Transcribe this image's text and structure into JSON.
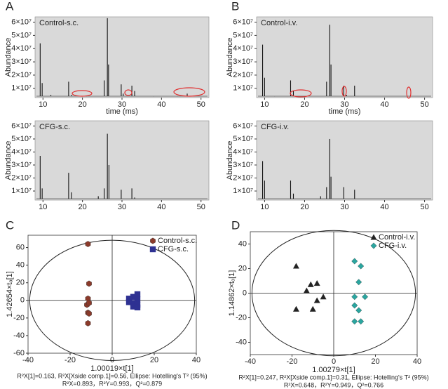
{
  "chart_data": [
    {
      "type": "chromatogram",
      "panel": "A",
      "name": "Control-s.c.",
      "color": "#111111",
      "background": "#d9d9d9",
      "y_label": "Abundance",
      "x_label": "time (ms)",
      "x": [
        9.3,
        9.8,
        12.0,
        16.5,
        17.3,
        21.0,
        25.5,
        26.3,
        26.6,
        29.8,
        30.3,
        32.5,
        33.2,
        38.0,
        44.0,
        46.5
      ],
      "values": [
        44000000,
        14000000,
        5000000,
        15000000,
        5000000,
        4000000,
        16000000,
        63000000,
        28000000,
        13000000,
        6000000,
        12000000,
        8000000,
        4000000,
        4000000,
        6000000
      ],
      "xlim": [
        8,
        52
      ],
      "xticks": [
        10,
        20,
        30,
        40,
        50
      ],
      "ylim": [
        3000000,
        64000000
      ],
      "yticks": [
        {
          "value": 10000000,
          "label": "1×10⁷"
        },
        {
          "value": 20000000,
          "label": "2×10⁷"
        },
        {
          "value": 30000000,
          "label": "3×10⁷"
        },
        {
          "value": 40000000,
          "label": "4×10⁷"
        },
        {
          "value": 50000000,
          "label": "5×10⁷"
        },
        {
          "value": 60000000,
          "label": "6×10⁷"
        }
      ]
    },
    {
      "type": "chromatogram",
      "name": "CFG-s.c.",
      "color": "#111111",
      "background": "#d9d9d9",
      "y_label": "Abundance",
      "x": [
        9.3,
        9.8,
        16.5,
        17.2,
        24.0,
        25.5,
        26.3,
        26.7,
        29.8,
        32.5,
        33.2
      ],
      "values": [
        37000000,
        12000000,
        24000000,
        9000000,
        6000000,
        12000000,
        54000000,
        30000000,
        11000000,
        12000000,
        5000000
      ],
      "xlim": [
        8,
        52
      ],
      "xticks": [
        10,
        20,
        30,
        40,
        50
      ],
      "ylim": [
        3000000,
        64000000
      ],
      "yticks": [
        {
          "value": 10000000,
          "label": "1×10⁷"
        },
        {
          "value": 20000000,
          "label": "2×10⁷"
        },
        {
          "value": 30000000,
          "label": "3×10⁷"
        },
        {
          "value": 40000000,
          "label": "4×10⁷"
        },
        {
          "value": 50000000,
          "label": "5×10⁷"
        },
        {
          "value": 60000000,
          "label": "6×10⁷"
        }
      ]
    },
    {
      "type": "chromatogram",
      "panel": "B",
      "name": "Control-i.v.",
      "color": "#111111",
      "background": "#d9d9d9",
      "y_label": "Abundance",
      "x_label": "time (ms)",
      "x": [
        9.5,
        10.0,
        12.5,
        16.5,
        17.2,
        25.5,
        26.3,
        26.6,
        29.8,
        30.5,
        32.5
      ],
      "values": [
        43000000,
        18000000,
        4000000,
        16000000,
        8000000,
        15000000,
        58000000,
        28000000,
        12000000,
        5000000,
        12000000
      ],
      "xlim": [
        8,
        52
      ],
      "xticks": [
        10,
        20,
        30,
        40,
        50
      ],
      "ylim": [
        3000000,
        64000000
      ],
      "yticks": [
        {
          "value": 10000000,
          "label": "1×10⁷"
        },
        {
          "value": 20000000,
          "label": "2×10⁷"
        },
        {
          "value": 30000000,
          "label": "3×10⁷"
        },
        {
          "value": 40000000,
          "label": "4×10⁷"
        },
        {
          "value": 50000000,
          "label": "5×10⁷"
        },
        {
          "value": 60000000,
          "label": "6×10⁷"
        }
      ]
    },
    {
      "type": "chromatogram",
      "name": "CFG-i.v.",
      "color": "#111111",
      "background": "#d9d9d9",
      "y_label": "Abundance",
      "x": [
        9.5,
        10.0,
        16.5,
        17.2,
        24.0,
        25.5,
        26.3,
        26.6,
        29.8,
        32.5
      ],
      "values": [
        33000000,
        18000000,
        18000000,
        8000000,
        6000000,
        13000000,
        50000000,
        21000000,
        13000000,
        11000000
      ],
      "xlim": [
        8,
        52
      ],
      "xticks": [
        10,
        20,
        30,
        40,
        50
      ],
      "ylim": [
        3000000,
        64000000
      ],
      "yticks": [
        {
          "value": 10000000,
          "label": "1×10⁷"
        },
        {
          "value": 20000000,
          "label": "2×10⁷"
        },
        {
          "value": 30000000,
          "label": "3×10⁷"
        },
        {
          "value": 40000000,
          "label": "4×10⁷"
        },
        {
          "value": 50000000,
          "label": "5×10⁷"
        },
        {
          "value": 60000000,
          "label": "6×10⁷"
        }
      ]
    },
    {
      "type": "scatter",
      "panel": "C",
      "x_label": "1.00019×t[1]",
      "y_label": "1.42654×tₒ[1]",
      "legend": "upper right",
      "notes": [
        "R²X[1]=0.163, R²X[Xside comp.1]=0.56, Ellipse: Hotelling's T² (95%)",
        "R²X=0.893，R²Y=0.993，Q²=0.879"
      ],
      "xlim": [
        -40,
        40
      ],
      "xticks": [
        -40,
        -20,
        0,
        20,
        40
      ],
      "ylim": [
        -60,
        74
      ],
      "yticks": [
        -60,
        -40,
        -20,
        0,
        20,
        40,
        60
      ],
      "series": [
        {
          "name": "Control-s.c.",
          "color": "#8b3a2a",
          "marker": "hexagon",
          "x": [
            -11.5,
            -11,
            -11.5,
            -12,
            -11,
            -11.5,
            -11,
            -11.5
          ],
          "values": [
            64,
            19,
            2,
            -5,
            -3,
            -14,
            -15,
            -26
          ]
        },
        {
          "name": "CFG-s.c.",
          "color": "#2e3192",
          "marker": "square",
          "x": [
            12,
            10,
            8,
            12,
            8,
            10,
            12,
            10,
            12
          ],
          "values": [
            7,
            4,
            2,
            1,
            -2,
            -3,
            -5,
            -7,
            -8
          ]
        }
      ]
    },
    {
      "type": "scatter",
      "panel": "D",
      "x_label": "1.00279×t[1]",
      "y_label": "1.14862×tₒ[1]",
      "legend": "upper right",
      "notes": [
        "R²X[1]=0.247, R²X[Xside comp.1]=0.31, Ellipse: Hotelling's T² (95%)",
        "R²X=0.648，R²Y=0.949，Q²=0.766"
      ],
      "xlim": [
        -40,
        40
      ],
      "xticks": [
        -40,
        -20,
        0,
        20,
        40
      ],
      "ylim": [
        -50,
        50
      ],
      "yticks": [
        -40,
        -20,
        0,
        20,
        40
      ],
      "series": [
        {
          "name": "Control-i.v.",
          "color": "#222222",
          "marker": "triangle",
          "x": [
            -18,
            -11,
            -8,
            -13,
            -18,
            -8,
            -10,
            -5
          ],
          "values": [
            22,
            7,
            8,
            2,
            -13,
            -6,
            -13,
            -3
          ]
        },
        {
          "name": "CFG-i.v.",
          "color": "#2aa6a0",
          "marker": "diamond",
          "x": [
            10,
            13,
            12,
            15,
            10,
            10,
            12,
            10,
            13
          ],
          "values": [
            26,
            22,
            9,
            -3,
            -3,
            -10,
            -14,
            -23,
            -23
          ]
        }
      ]
    }
  ]
}
